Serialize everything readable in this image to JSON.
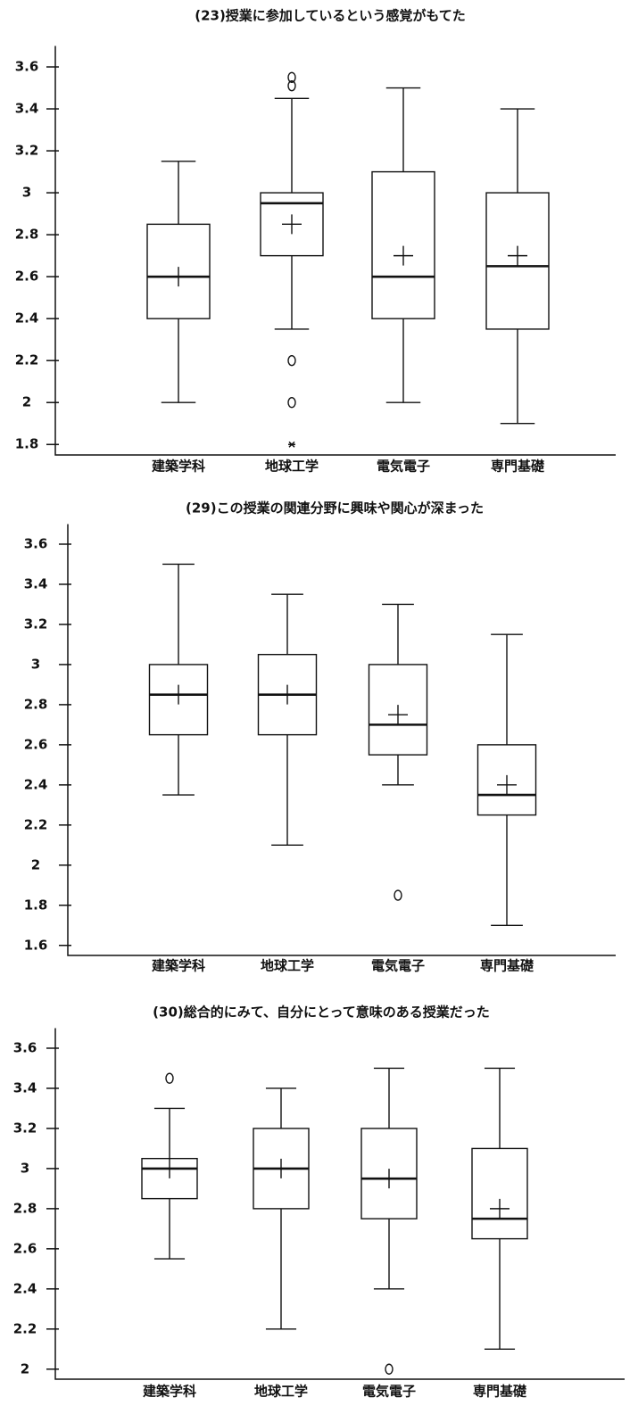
{
  "chart_data": [
    {
      "type": "box",
      "title": "(23)授業に参加しているという感覚がもてた",
      "categories": [
        "建築学科",
        "地球工学",
        "電気電子",
        "専門基礎"
      ],
      "boxes": [
        {
          "whisker_low": 2.0,
          "q1": 2.4,
          "median": 2.6,
          "q3": 2.85,
          "whisker_high": 3.15,
          "mean": 2.6,
          "outliers": [],
          "extremes": []
        },
        {
          "whisker_low": 2.35,
          "q1": 2.7,
          "median": 2.95,
          "q3": 3.0,
          "whisker_high": 3.45,
          "mean": 2.85,
          "outliers": [
            3.55,
            3.51,
            2.2,
            2.0
          ],
          "extremes": [
            1.8
          ]
        },
        {
          "whisker_low": 2.0,
          "q1": 2.4,
          "median": 2.6,
          "q3": 3.1,
          "whisker_high": 3.5,
          "mean": 2.7,
          "outliers": [],
          "extremes": []
        },
        {
          "whisker_low": 1.9,
          "q1": 2.35,
          "median": 2.65,
          "q3": 3.0,
          "whisker_high": 3.4,
          "mean": 2.7,
          "outliers": [],
          "extremes": []
        }
      ],
      "ylim": [
        1.75,
        3.7
      ],
      "yticks": [
        1.8,
        2,
        2.2,
        2.4,
        2.6,
        2.8,
        3,
        3.2,
        3.4,
        3.6
      ]
    },
    {
      "type": "box",
      "title": "(29)この授業の関連分野に興味や関心が深まった",
      "categories": [
        "建築学科",
        "地球工学",
        "電気電子",
        "専門基礎"
      ],
      "boxes": [
        {
          "whisker_low": 2.35,
          "q1": 2.65,
          "median": 2.85,
          "q3": 3.0,
          "whisker_high": 3.5,
          "mean": 2.85,
          "outliers": [],
          "extremes": []
        },
        {
          "whisker_low": 2.1,
          "q1": 2.65,
          "median": 2.85,
          "q3": 3.05,
          "whisker_high": 3.35,
          "mean": 2.85,
          "outliers": [],
          "extremes": []
        },
        {
          "whisker_low": 2.4,
          "q1": 2.55,
          "median": 2.7,
          "q3": 3.0,
          "whisker_high": 3.3,
          "mean": 2.75,
          "outliers": [
            1.85
          ],
          "extremes": []
        },
        {
          "whisker_low": 1.7,
          "q1": 2.25,
          "median": 2.35,
          "q3": 2.6,
          "whisker_high": 3.15,
          "mean": 2.4,
          "outliers": [],
          "extremes": []
        }
      ],
      "ylim": [
        1.55,
        3.7
      ],
      "yticks": [
        1.6,
        1.8,
        2,
        2.2,
        2.4,
        2.6,
        2.8,
        3,
        3.2,
        3.4,
        3.6
      ]
    },
    {
      "type": "box",
      "title": "(30)総合的にみて、自分にとって意味のある授業だった",
      "categories": [
        "建築学科",
        "地球工学",
        "電気電子",
        "専門基礎"
      ],
      "boxes": [
        {
          "whisker_low": 2.55,
          "q1": 2.85,
          "median": 3.0,
          "q3": 3.05,
          "whisker_high": 3.3,
          "mean": 3.0,
          "outliers": [
            3.45
          ],
          "extremes": []
        },
        {
          "whisker_low": 2.2,
          "q1": 2.8,
          "median": 3.0,
          "q3": 3.2,
          "whisker_high": 3.4,
          "mean": 3.0,
          "outliers": [],
          "extremes": []
        },
        {
          "whisker_low": 2.4,
          "q1": 2.75,
          "median": 2.95,
          "q3": 3.2,
          "whisker_high": 3.5,
          "mean": 2.95,
          "outliers": [
            2.0
          ],
          "extremes": []
        },
        {
          "whisker_low": 2.1,
          "q1": 2.65,
          "median": 2.75,
          "q3": 3.1,
          "whisker_high": 3.5,
          "mean": 2.8,
          "outliers": [],
          "extremes": []
        }
      ],
      "ylim": [
        1.95,
        3.7
      ],
      "yticks": [
        2,
        2.2,
        2.4,
        2.6,
        2.8,
        3,
        3.2,
        3.4,
        3.6
      ]
    }
  ]
}
